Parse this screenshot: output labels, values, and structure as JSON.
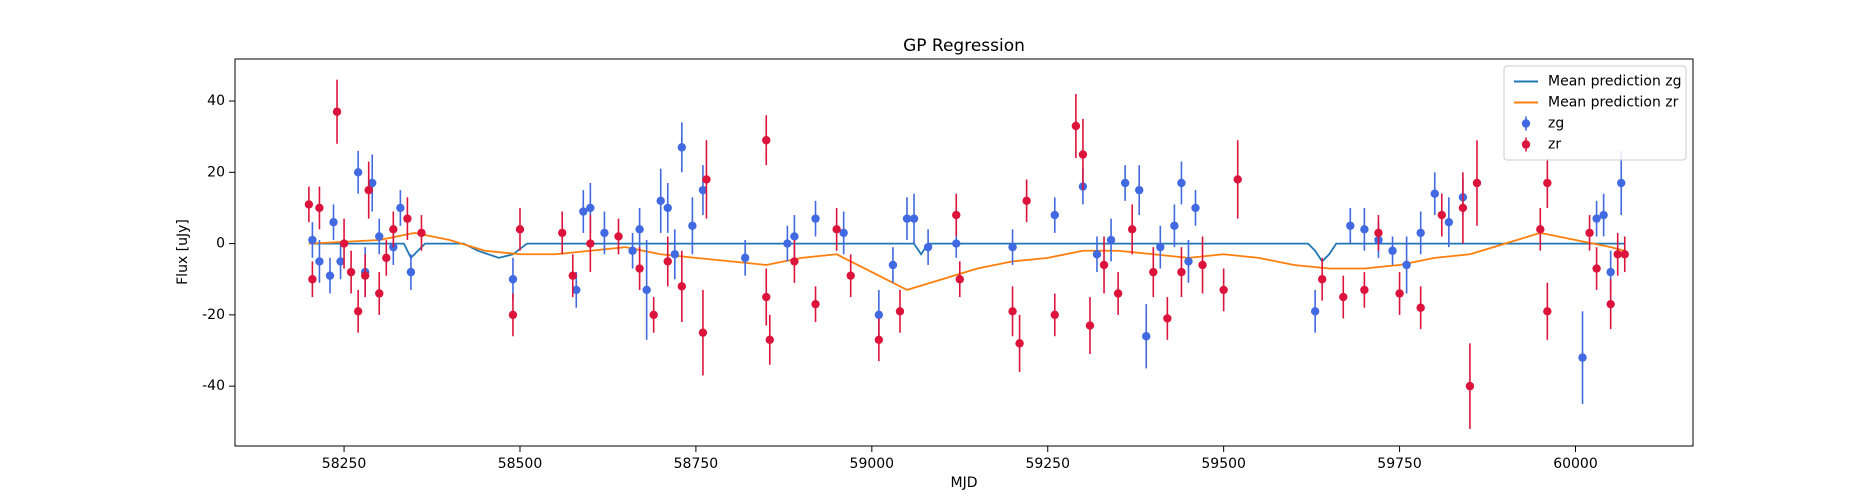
{
  "chart_data": {
    "type": "errorbar-scatter",
    "title": "GP Regression",
    "x_label": "MJD",
    "y_label": "Flux [uJy]",
    "xlim": [
      58095,
      60167
    ],
    "ylim": [
      -56.8,
      51.8
    ],
    "xticks": [
      58250,
      58500,
      58750,
      59000,
      59250,
      59500,
      59750,
      60000
    ],
    "yticks": [
      -40,
      -20,
      0,
      20,
      40
    ],
    "legend": "upper right",
    "series": [
      {
        "name": "Mean prediction zg",
        "kind": "line",
        "color": "#1f77b4",
        "x": [
          58200,
          58335,
          58345,
          58355,
          58365,
          58420,
          58440,
          58470,
          58490,
          58510,
          58570,
          59060,
          59070,
          59080,
          59620,
          59630,
          59640,
          59650,
          59660,
          60070
        ],
        "values": [
          0,
          0,
          -4,
          -2,
          0,
          0,
          -2,
          -4,
          -3,
          0,
          0,
          0,
          -3,
          0,
          0,
          -2,
          -5,
          -3,
          0,
          0
        ]
      },
      {
        "name": "Mean prediction zr",
        "kind": "line",
        "color": "#ff7f0e",
        "x": [
          58200,
          58300,
          58350,
          58400,
          58450,
          58500,
          58550,
          58600,
          58650,
          58700,
          58750,
          58800,
          58850,
          58900,
          58950,
          59000,
          59050,
          59100,
          59150,
          59200,
          59250,
          59300,
          59350,
          59400,
          59450,
          59500,
          59550,
          59600,
          59650,
          59700,
          59750,
          59800,
          59850,
          59900,
          59950,
          60000,
          60050,
          60070
        ],
        "values": [
          0,
          1,
          3,
          1,
          -2,
          -3,
          -3,
          -2,
          -1,
          -3,
          -4,
          -5,
          -6,
          -4,
          -3,
          -8,
          -13,
          -10,
          -7,
          -5,
          -4,
          -2,
          -2,
          -3,
          -4,
          -3,
          -4,
          -6,
          -7,
          -7,
          -6,
          -4,
          -3,
          0,
          3,
          1,
          -1,
          -2
        ]
      },
      {
        "name": "zg",
        "kind": "errorbar",
        "color": "#4169e1",
        "x": [
          58205,
          58215,
          58230,
          58235,
          58245,
          58270,
          58280,
          58290,
          58300,
          58320,
          58330,
          58345,
          58490,
          58580,
          58590,
          58600,
          58620,
          58660,
          58670,
          58680,
          58700,
          58710,
          58720,
          58730,
          58745,
          58760,
          58820,
          58880,
          58890,
          58920,
          58960,
          59010,
          59030,
          59050,
          59060,
          59080,
          59120,
          59200,
          59260,
          59300,
          59320,
          59340,
          59360,
          59380,
          59390,
          59410,
          59430,
          59440,
          59450,
          59460,
          59630,
          59680,
          59700,
          59720,
          59740,
          59760,
          59780,
          59800,
          59820,
          59840,
          60010,
          60030,
          60040,
          60050,
          60065
        ],
        "values": [
          1,
          -5,
          -9,
          6,
          -5,
          20,
          -8,
          17,
          2,
          -1,
          10,
          -8,
          -10,
          -13,
          9,
          10,
          3,
          -2,
          4,
          -13,
          12,
          10,
          -3,
          27,
          5,
          15,
          -4,
          0,
          2,
          7,
          3,
          -20,
          -6,
          7,
          7,
          -1,
          0,
          -1,
          8,
          16,
          -3,
          1,
          17,
          15,
          -26,
          -1,
          5,
          17,
          -5,
          10,
          -19,
          5,
          4,
          1,
          -2,
          -6,
          3,
          14,
          6,
          13,
          -32,
          7,
          8,
          -8,
          17
        ],
        "errors": [
          5,
          6,
          5,
          5,
          5,
          6,
          7,
          8,
          5,
          5,
          5,
          5,
          6,
          5,
          6,
          7,
          6,
          5,
          6,
          14,
          9,
          7,
          7,
          7,
          8,
          7,
          5,
          5,
          6,
          5,
          6,
          7,
          5,
          6,
          7,
          5,
          4,
          5,
          5,
          5,
          5,
          6,
          5,
          7,
          9,
          6,
          6,
          6,
          6,
          5,
          6,
          5,
          6,
          5,
          4,
          8,
          6,
          6,
          7,
          5,
          13,
          5,
          6,
          6,
          9
        ]
      },
      {
        "name": "zr",
        "kind": "errorbar",
        "color": "#dc143c",
        "x": [
          58200,
          58205,
          58215,
          58240,
          58250,
          58260,
          58270,
          58280,
          58285,
          58300,
          58310,
          58320,
          58340,
          58360,
          58490,
          58500,
          58560,
          58575,
          58600,
          58640,
          58670,
          58690,
          58710,
          58730,
          58760,
          58765,
          58850,
          58855,
          58850,
          58890,
          58920,
          58950,
          58970,
          59010,
          59040,
          59120,
          59125,
          59200,
          59210,
          59220,
          59260,
          59290,
          59300,
          59310,
          59330,
          59350,
          59370,
          59400,
          59420,
          59440,
          59470,
          59500,
          59520,
          59640,
          59670,
          59700,
          59720,
          59750,
          59780,
          59810,
          59840,
          59850,
          59860,
          59950,
          59960,
          59960,
          60020,
          60030,
          60050,
          60060,
          60070
        ],
        "values": [
          11,
          -10,
          10,
          37,
          0,
          -8,
          -19,
          -9,
          15,
          -14,
          -4,
          4,
          7,
          3,
          -20,
          4,
          3,
          -9,
          0,
          2,
          -7,
          -20,
          -5,
          -12,
          -25,
          18,
          29,
          -27,
          -15,
          -5,
          -17,
          4,
          -9,
          -27,
          -19,
          8,
          -10,
          -19,
          -28,
          12,
          -20,
          33,
          25,
          -23,
          -6,
          -14,
          4,
          -8,
          -21,
          -8,
          -6,
          -13,
          18,
          -10,
          -15,
          -13,
          3,
          -14,
          -18,
          8,
          10,
          -40,
          17,
          4,
          17,
          -19,
          3,
          -7,
          -17,
          -3,
          -3
        ],
        "errors": [
          5,
          5,
          6,
          9,
          7,
          6,
          6,
          6,
          8,
          6,
          5,
          5,
          6,
          5,
          6,
          6,
          6,
          6,
          8,
          5,
          6,
          5,
          7,
          10,
          12,
          11,
          7,
          7,
          8,
          6,
          5,
          6,
          6,
          6,
          6,
          6,
          5,
          7,
          8,
          6,
          6,
          9,
          10,
          8,
          8,
          6,
          7,
          7,
          6,
          7,
          8,
          6,
          11,
          6,
          6,
          5,
          5,
          6,
          6,
          6,
          10,
          12,
          12,
          6,
          7,
          8,
          5,
          6,
          7,
          6,
          5
        ]
      }
    ]
  }
}
